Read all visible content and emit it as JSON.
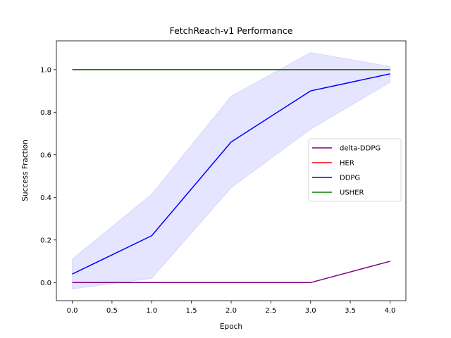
{
  "chart_data": {
    "type": "line",
    "title": "FetchReach-v1 Performance",
    "xlabel": "Epoch",
    "ylabel": "Success Fraction",
    "xlim": [
      -0.2,
      4.2
    ],
    "ylim": [
      -0.085,
      1.135
    ],
    "xticks": [
      0.0,
      0.5,
      1.0,
      1.5,
      2.0,
      2.5,
      3.0,
      3.5,
      4.0
    ],
    "xtick_labels": [
      "0.0",
      "0.5",
      "1.0",
      "1.5",
      "2.0",
      "2.5",
      "3.0",
      "3.5",
      "4.0"
    ],
    "yticks": [
      0.0,
      0.2,
      0.4,
      0.6,
      0.8,
      1.0
    ],
    "ytick_labels": [
      "0.0",
      "0.2",
      "0.4",
      "0.6",
      "0.8",
      "1.0"
    ],
    "grid": false,
    "legend": "center-right",
    "x": [
      0,
      1,
      2,
      3,
      4
    ],
    "series": [
      {
        "name": "delta-DDPG",
        "color": "#800080",
        "values": [
          0.0,
          0.0,
          0.0,
          0.0,
          0.1
        ]
      },
      {
        "name": "HER",
        "color": "#ff0000",
        "values": [
          1.0,
          1.0,
          1.0,
          1.0,
          1.0
        ]
      },
      {
        "name": "DDPG",
        "color": "#0000ff",
        "values": [
          0.04,
          0.22,
          0.66,
          0.9,
          0.98
        ],
        "band_lower": [
          -0.03,
          0.02,
          0.445,
          0.72,
          0.94
        ],
        "band_upper": [
          0.11,
          0.415,
          0.875,
          1.08,
          1.015
        ]
      },
      {
        "name": "USHER",
        "color": "#008000",
        "values": [
          1.0,
          1.0,
          1.0,
          1.0,
          1.0
        ]
      }
    ]
  }
}
